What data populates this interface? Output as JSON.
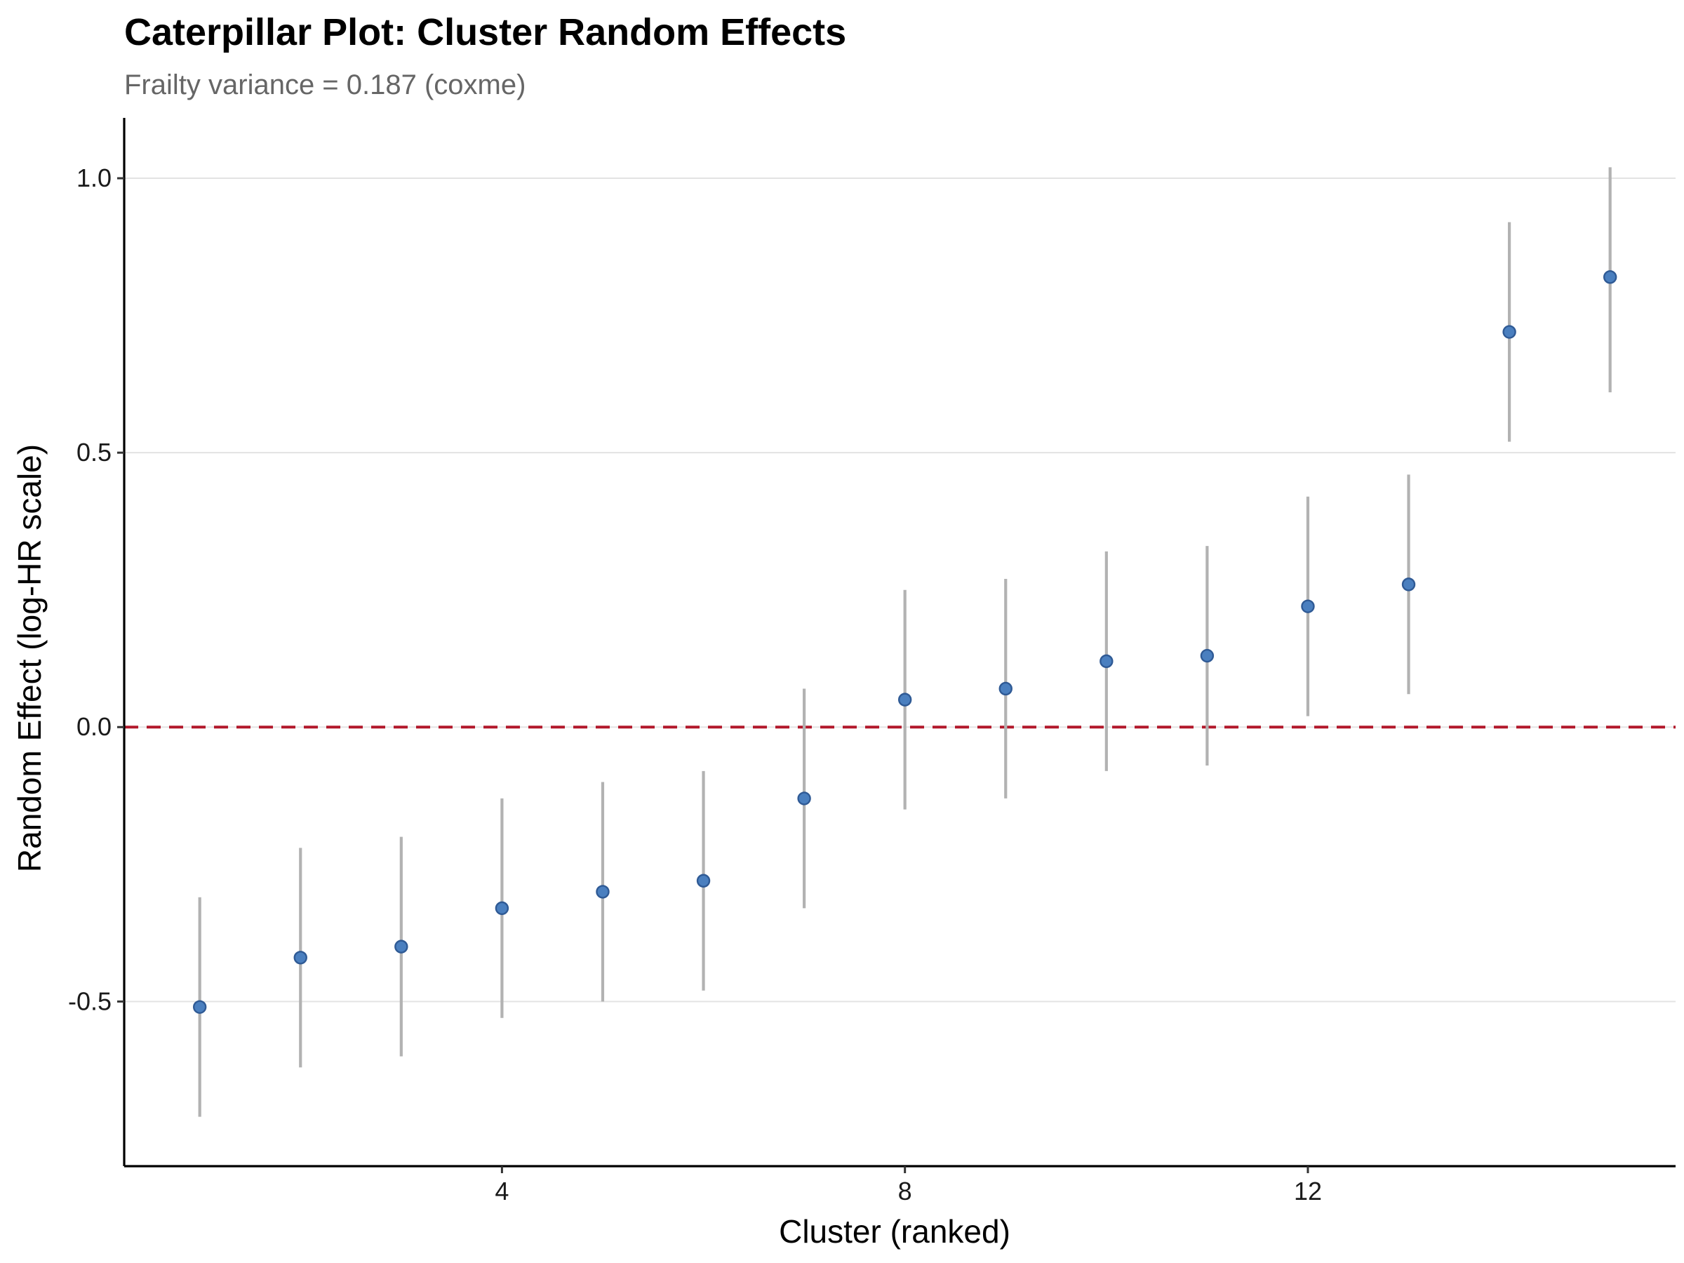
{
  "colors": {
    "background": "#ffffff",
    "point": "#4a7fbf",
    "error_bar": "#b2b2b2",
    "reference_line": "#b2182b",
    "gridline": "#e3e3e3",
    "axis": "#000000"
  },
  "chart_data": {
    "type": "scatter",
    "title": "Caterpillar Plot: Cluster Random Effects",
    "subtitle": "Frailty variance = 0.187 (coxme)",
    "xlabel": "Cluster (ranked)",
    "ylabel": "Random Effect (log-HR scale)",
    "xlim": [
      0.25,
      15.65
    ],
    "ylim": [
      -0.8,
      1.11
    ],
    "x_ticks": [
      4,
      8,
      12
    ],
    "x_tick_labels": [
      "4",
      "8",
      "12"
    ],
    "y_ticks": [
      -0.5,
      0.0,
      0.5,
      1.0
    ],
    "y_tick_labels": [
      "-0.5",
      "0.0",
      "0.5",
      "1.0"
    ],
    "grid": "horizontal major gridlines",
    "reference_line": {
      "y": 0,
      "style": "dashed",
      "color": "#b2182b"
    },
    "x": [
      1,
      2,
      3,
      4,
      5,
      6,
      7,
      8,
      9,
      10,
      11,
      12,
      13,
      14,
      15
    ],
    "y": [
      -0.51,
      -0.42,
      -0.4,
      -0.33,
      -0.3,
      -0.28,
      -0.13,
      0.05,
      0.07,
      0.12,
      0.13,
      0.22,
      0.26,
      0.72,
      0.82
    ],
    "ci_lower": [
      -0.71,
      -0.62,
      -0.6,
      -0.53,
      -0.5,
      -0.48,
      -0.33,
      -0.15,
      -0.13,
      -0.08,
      -0.07,
      0.02,
      0.06,
      0.52,
      0.61
    ],
    "ci_upper": [
      -0.31,
      -0.22,
      -0.2,
      -0.13,
      -0.1,
      -0.08,
      0.07,
      0.25,
      0.27,
      0.32,
      0.33,
      0.42,
      0.46,
      0.92,
      1.02
    ]
  }
}
